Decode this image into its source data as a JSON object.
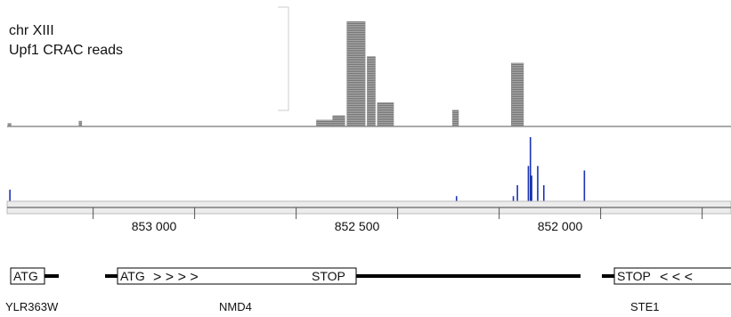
{
  "track": {
    "chromosome": "chr XIII",
    "title": "Upf1 CRAC reads",
    "read_color": "#999999",
    "signal_color": "#1a33b3"
  },
  "axis": {
    "orientation": "reverse",
    "ticks": [
      {
        "position": 853000,
        "label": "853 000"
      },
      {
        "position": 852500,
        "label": "852 500"
      },
      {
        "position": 852000,
        "label": "852 000"
      }
    ]
  },
  "chart_data": {
    "type": "bar",
    "coverage_piles": [
      {
        "start": 853360,
        "end": 853352,
        "level": 0.02
      },
      {
        "start": 853185,
        "end": 853178,
        "level": 0.04
      },
      {
        "start": 852600,
        "end": 852560,
        "level": 0.05
      },
      {
        "start": 852560,
        "end": 852530,
        "level": 0.09
      },
      {
        "start": 852525,
        "end": 852480,
        "level": 0.95
      },
      {
        "start": 852475,
        "end": 852455,
        "level": 0.63
      },
      {
        "start": 852450,
        "end": 852410,
        "level": 0.21
      },
      {
        "start": 852265,
        "end": 852250,
        "level": 0.14
      },
      {
        "start": 852120,
        "end": 852090,
        "level": 0.57
      }
    ],
    "signal_peaks": [
      {
        "position": 853355,
        "value": 0.18
      },
      {
        "position": 852255,
        "value": 0.08
      },
      {
        "position": 852115,
        "value": 0.08
      },
      {
        "position": 852105,
        "value": 0.25
      },
      {
        "position": 852078,
        "value": 0.55
      },
      {
        "position": 852073,
        "value": 1.0
      },
      {
        "position": 852070,
        "value": 0.4
      },
      {
        "position": 852055,
        "value": 0.55
      },
      {
        "position": 852040,
        "value": 0.25
      },
      {
        "position": 851940,
        "value": 0.48
      }
    ]
  },
  "genes": [
    {
      "name": "YLR363W",
      "start_label": "ATG",
      "end_label": "",
      "arrows": ""
    },
    {
      "name": "NMD4",
      "start_label": "ATG",
      "end_label": "STOP",
      "arrows": "> > > >"
    },
    {
      "name": "STE1",
      "start_label": "STOP",
      "end_label": "",
      "arrows": "< < <"
    }
  ]
}
